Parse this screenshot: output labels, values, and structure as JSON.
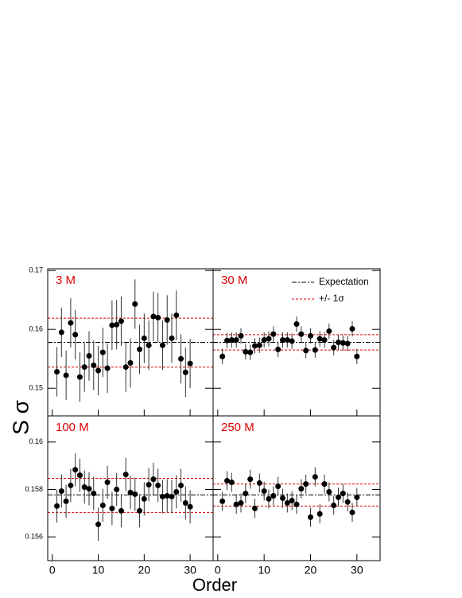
{
  "figure": {
    "xlabel": "Order",
    "ylabel": "S σ",
    "legend": [
      {
        "name": "Expectation",
        "color": "#000000",
        "dash": "6,2,2,2"
      },
      {
        "name": "+/- 1σ",
        "color": "#e00000",
        "dash": "3,2"
      }
    ]
  },
  "chart_data": [
    {
      "type": "scatter",
      "title": "3 M",
      "color": "#000000",
      "x": [
        1,
        2,
        3,
        4,
        5,
        6,
        7,
        8,
        9,
        10,
        11,
        12,
        13,
        14,
        15,
        16,
        17,
        18,
        19,
        20,
        21,
        22,
        23,
        24,
        25,
        26,
        27,
        28,
        29,
        30
      ],
      "values": [
        0.1528,
        0.1595,
        0.1522,
        0.1611,
        0.1591,
        0.1519,
        0.1536,
        0.1555,
        0.1539,
        0.153,
        0.1561,
        0.1534,
        0.1607,
        0.1608,
        0.1614,
        0.1536,
        0.1543,
        0.1643,
        0.1566,
        0.1585,
        0.1573,
        0.1622,
        0.162,
        0.1573,
        0.1616,
        0.1585,
        0.1624,
        0.155,
        0.1527,
        0.1542
      ],
      "errors": [
        0.0042,
        0.0042,
        0.0042,
        0.0042,
        0.0042,
        0.0042,
        0.0042,
        0.0042,
        0.0042,
        0.0042,
        0.0042,
        0.0042,
        0.0042,
        0.0042,
        0.0042,
        0.0042,
        0.0042,
        0.0042,
        0.0042,
        0.0042,
        0.0042,
        0.0042,
        0.0042,
        0.0042,
        0.0042,
        0.0042,
        0.0042,
        0.0042,
        0.0042,
        0.0042
      ],
      "expectation": 0.1578,
      "sigma_lines": [
        0.1536,
        0.1619
      ],
      "xlim": [
        -1,
        35
      ],
      "xticks": [
        0,
        10,
        20,
        30
      ],
      "ylim": [
        0.1453,
        0.1703
      ],
      "yticks": [
        0.15,
        0.16,
        0.17
      ]
    },
    {
      "type": "scatter",
      "title": "30 M",
      "color": "#000000",
      "x": [
        1,
        2,
        3,
        4,
        5,
        6,
        7,
        8,
        9,
        10,
        11,
        12,
        13,
        14,
        15,
        16,
        17,
        18,
        19,
        20,
        21,
        22,
        23,
        24,
        25,
        26,
        27,
        28,
        29,
        30
      ],
      "values": [
        0.1554,
        0.1581,
        0.1582,
        0.1582,
        0.1589,
        0.1562,
        0.1561,
        0.1572,
        0.1573,
        0.1582,
        0.1584,
        0.1592,
        0.1566,
        0.1582,
        0.1582,
        0.158,
        0.1609,
        0.1592,
        0.1564,
        0.1589,
        0.1565,
        0.1584,
        0.1582,
        0.1597,
        0.1569,
        0.1578,
        0.1577,
        0.1576,
        0.1601,
        0.1554
      ],
      "errors": [
        0.0013,
        0.0013,
        0.0013,
        0.0013,
        0.0013,
        0.0013,
        0.0013,
        0.0013,
        0.0013,
        0.0013,
        0.0013,
        0.0013,
        0.0013,
        0.0013,
        0.0013,
        0.0013,
        0.0013,
        0.0013,
        0.0013,
        0.0013,
        0.0013,
        0.0013,
        0.0013,
        0.0013,
        0.0013,
        0.0013,
        0.0013,
        0.0013,
        0.0013,
        0.0013
      ],
      "expectation": 0.1578,
      "sigma_lines": [
        0.1565,
        0.1591
      ],
      "xlim": [
        -1,
        35
      ],
      "xticks": [
        0,
        10,
        20,
        30
      ],
      "ylim": [
        0.1453,
        0.1703
      ],
      "yticks": [
        0.15,
        0.16,
        0.17
      ]
    },
    {
      "type": "scatter",
      "title": "100 M",
      "color": "#000000",
      "x": [
        1,
        2,
        3,
        4,
        5,
        6,
        7,
        8,
        9,
        10,
        11,
        12,
        13,
        14,
        15,
        16,
        17,
        18,
        19,
        20,
        21,
        22,
        23,
        24,
        25,
        26,
        27,
        28,
        29,
        30
      ],
      "values": [
        0.1573,
        0.15793,
        0.1575,
        0.15817,
        0.15883,
        0.1586,
        0.1581,
        0.15803,
        0.15783,
        0.15653,
        0.15733,
        0.1583,
        0.1572,
        0.158,
        0.1571,
        0.15863,
        0.15787,
        0.1578,
        0.1571,
        0.1576,
        0.1582,
        0.15843,
        0.15817,
        0.1577,
        0.15773,
        0.1577,
        0.1579,
        0.15817,
        0.15743,
        0.15727
      ],
      "errors": [
        0.0007,
        0.0007,
        0.0007,
        0.0007,
        0.0007,
        0.0007,
        0.0007,
        0.0007,
        0.0007,
        0.0007,
        0.0007,
        0.0007,
        0.0007,
        0.0007,
        0.0007,
        0.0007,
        0.0007,
        0.0007,
        0.0007,
        0.0007,
        0.0007,
        0.0007,
        0.0007,
        0.0007,
        0.0007,
        0.0007,
        0.0007,
        0.0007,
        0.0007,
        0.0007
      ],
      "expectation": 0.15777,
      "sigma_lines": [
        0.15703,
        0.15847
      ],
      "xlim": [
        -1,
        35
      ],
      "xticks": [
        0,
        10,
        20,
        30
      ],
      "ylim": [
        0.155,
        0.1611
      ],
      "yticks": [
        0.156,
        0.158,
        0.16
      ]
    },
    {
      "type": "scatter",
      "title": "250 M",
      "color": "#000000",
      "x": [
        1,
        2,
        3,
        4,
        5,
        6,
        7,
        8,
        9,
        10,
        11,
        12,
        13,
        14,
        15,
        16,
        17,
        18,
        19,
        20,
        21,
        22,
        23,
        24,
        25,
        26,
        27,
        28,
        29,
        30
      ],
      "values": [
        0.1575,
        0.15837,
        0.1583,
        0.15737,
        0.15743,
        0.15783,
        0.15843,
        0.1572,
        0.15827,
        0.15793,
        0.1576,
        0.15773,
        0.15813,
        0.15763,
        0.15743,
        0.15753,
        0.15737,
        0.15803,
        0.15823,
        0.15683,
        0.15853,
        0.15697,
        0.15823,
        0.1579,
        0.15733,
        0.15767,
        0.15783,
        0.15747,
        0.15703,
        0.15767
      ],
      "errors": [
        0.0004,
        0.0004,
        0.0004,
        0.0004,
        0.0004,
        0.0004,
        0.0004,
        0.0004,
        0.0004,
        0.0004,
        0.0004,
        0.0004,
        0.0004,
        0.0004,
        0.0004,
        0.0004,
        0.0004,
        0.0004,
        0.0004,
        0.0004,
        0.0004,
        0.0004,
        0.0004,
        0.0004,
        0.0004,
        0.0004,
        0.0004,
        0.0004,
        0.0004,
        0.0004
      ],
      "expectation": 0.15777,
      "sigma_lines": [
        0.1573,
        0.15823
      ],
      "xlim": [
        -1,
        35
      ],
      "xticks": [
        0,
        10,
        20,
        30
      ],
      "ylim": [
        0.155,
        0.1611
      ],
      "yticks": [
        0.156,
        0.158,
        0.16
      ]
    }
  ]
}
